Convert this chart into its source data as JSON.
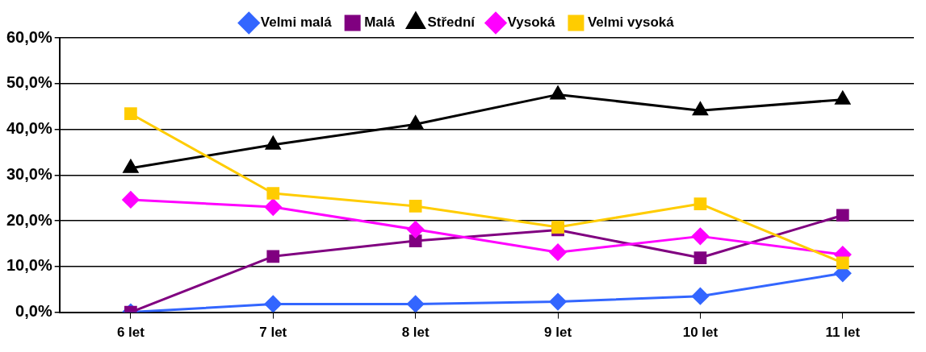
{
  "chart_data": {
    "type": "line",
    "categories": [
      "6 let",
      "7 let",
      "8 let",
      "9 let",
      "10 let",
      "11 let"
    ],
    "series": [
      {
        "name": "Velmi malá",
        "color": "#3366ff",
        "marker": "diamond",
        "values": [
          0,
          1.8,
          1.8,
          2.3,
          3.5,
          8.5
        ]
      },
      {
        "name": "Malá",
        "color": "#800080",
        "marker": "square",
        "values": [
          0,
          12.2,
          15.6,
          18.0,
          11.9,
          21.2
        ]
      },
      {
        "name": "Střední",
        "color": "#000000",
        "marker": "triangle",
        "values": [
          31.5,
          36.6,
          41.1,
          47.6,
          44.1,
          46.5
        ]
      },
      {
        "name": "Vysoká",
        "color": "#ff00ff",
        "marker": "diamond",
        "values": [
          24.6,
          23.0,
          18.1,
          13.1,
          16.6,
          12.6
        ]
      },
      {
        "name": "Velmi vysoká",
        "color": "#ffcc00",
        "marker": "square",
        "values": [
          43.4,
          26.0,
          23.2,
          18.6,
          23.7,
          10.8
        ]
      }
    ],
    "ylim": [
      0,
      60
    ],
    "yticks": [
      {
        "value": 0,
        "label": "0,0%"
      },
      {
        "value": 10,
        "label": "10,0%"
      },
      {
        "value": 20,
        "label": "20,0%"
      },
      {
        "value": 30,
        "label": "30,0%"
      },
      {
        "value": 40,
        "label": "40,0%"
      },
      {
        "value": 50,
        "label": "50,0%"
      },
      {
        "value": 60,
        "label": "60,0%"
      }
    ],
    "grid": "y",
    "legend": "top",
    "line_style": "solid"
  }
}
